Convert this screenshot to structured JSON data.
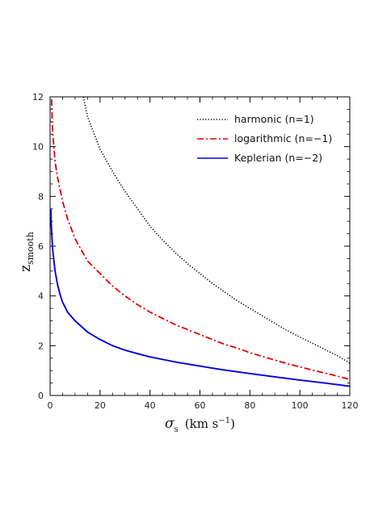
{
  "chart_data": {
    "type": "line",
    "title": "",
    "xlabel": {
      "symbol": "σ",
      "subscript": "s",
      "units": "(km s",
      "superscript": "−1",
      "close": ")"
    },
    "ylabel": {
      "main": "z",
      "subscript": "smooth"
    },
    "xlim": [
      0,
      120
    ],
    "ylim": [
      0,
      12
    ],
    "x_ticks": [
      0,
      20,
      40,
      60,
      80,
      100,
      120
    ],
    "y_ticks": [
      0,
      2,
      4,
      6,
      8,
      10,
      12
    ],
    "grid": false,
    "legend_position": "top-right",
    "series": [
      {
        "name": "harmonic (n=1)",
        "color": "#000000",
        "style": "dotted",
        "points": [
          [
            13.3,
            12.0
          ],
          [
            15,
            11.2
          ],
          [
            20,
            9.9
          ],
          [
            25,
            9.0
          ],
          [
            30,
            8.2
          ],
          [
            35,
            7.5
          ],
          [
            40,
            6.8
          ],
          [
            45,
            6.25
          ],
          [
            50,
            5.75
          ],
          [
            55,
            5.3
          ],
          [
            60,
            4.9
          ],
          [
            65,
            4.5
          ],
          [
            70,
            4.15
          ],
          [
            75,
            3.8
          ],
          [
            80,
            3.5
          ],
          [
            85,
            3.2
          ],
          [
            90,
            2.9
          ],
          [
            95,
            2.6
          ],
          [
            100,
            2.35
          ],
          [
            105,
            2.1
          ],
          [
            110,
            1.85
          ],
          [
            115,
            1.6
          ],
          [
            120,
            1.3
          ]
        ]
      },
      {
        "name": "logarithmic (n=−1)",
        "color": "#dd0000",
        "style": "dashdot",
        "points": [
          [
            0.6,
            11.9
          ],
          [
            1,
            10.6
          ],
          [
            2,
            9.4
          ],
          [
            3,
            8.75
          ],
          [
            5,
            7.8
          ],
          [
            7,
            7.1
          ],
          [
            10,
            6.3
          ],
          [
            15,
            5.4
          ],
          [
            20,
            4.9
          ],
          [
            25,
            4.4
          ],
          [
            30,
            4.0
          ],
          [
            35,
            3.65
          ],
          [
            40,
            3.35
          ],
          [
            45,
            3.1
          ],
          [
            50,
            2.85
          ],
          [
            55,
            2.65
          ],
          [
            60,
            2.45
          ],
          [
            65,
            2.25
          ],
          [
            70,
            2.05
          ],
          [
            75,
            1.9
          ],
          [
            80,
            1.72
          ],
          [
            85,
            1.57
          ],
          [
            90,
            1.42
          ],
          [
            95,
            1.28
          ],
          [
            100,
            1.15
          ],
          [
            105,
            1.02
          ],
          [
            110,
            0.9
          ],
          [
            115,
            0.78
          ],
          [
            120,
            0.65
          ]
        ]
      },
      {
        "name": "Keplerian (n=−2)",
        "color": "#0000dd",
        "style": "solid",
        "points": [
          [
            0.3,
            7.5
          ],
          [
            0.5,
            6.8
          ],
          [
            1,
            5.9
          ],
          [
            2,
            5.0
          ],
          [
            3,
            4.45
          ],
          [
            4,
            4.05
          ],
          [
            5,
            3.75
          ],
          [
            7,
            3.35
          ],
          [
            10,
            3.0
          ],
          [
            15,
            2.55
          ],
          [
            20,
            2.25
          ],
          [
            25,
            2.0
          ],
          [
            30,
            1.82
          ],
          [
            35,
            1.68
          ],
          [
            40,
            1.55
          ],
          [
            50,
            1.35
          ],
          [
            60,
            1.18
          ],
          [
            70,
            1.02
          ],
          [
            80,
            0.88
          ],
          [
            90,
            0.75
          ],
          [
            100,
            0.62
          ],
          [
            110,
            0.5
          ],
          [
            120,
            0.37
          ]
        ]
      }
    ]
  }
}
